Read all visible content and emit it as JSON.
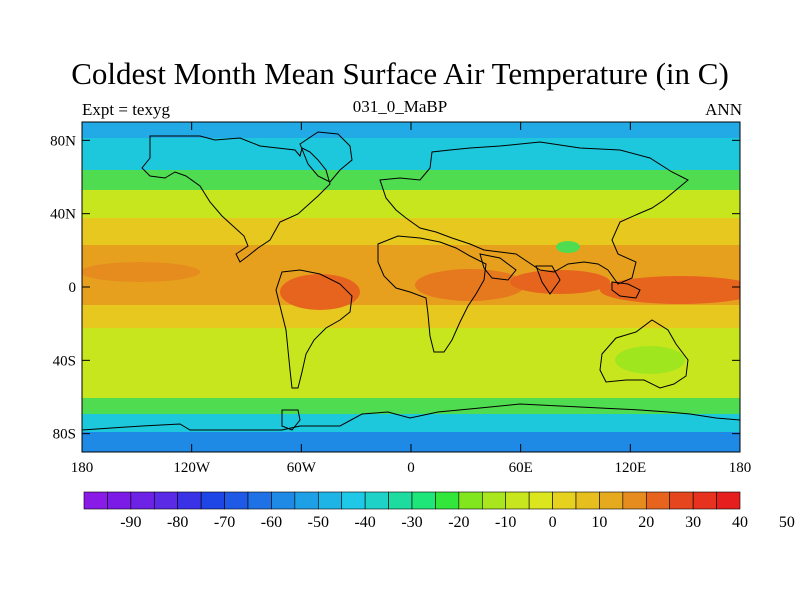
{
  "header": {
    "title": "Coldest Month Mean Surface Air Temperature (in C)",
    "left": "Expt = texyg",
    "center": "031_0_MaBP",
    "right": "ANN"
  },
  "axes": {
    "lon_ticks": [
      "180",
      "120W",
      "60W",
      "0",
      "60E",
      "120E",
      "180"
    ],
    "lat_ticks": [
      "80N",
      "40N",
      "0",
      "40S",
      "80S"
    ],
    "lon_values": [
      -180,
      -120,
      -60,
      0,
      60,
      120,
      180
    ],
    "lat_values": [
      80,
      40,
      0,
      -40,
      -80
    ]
  },
  "colorbar": {
    "labels": [
      "-90",
      "-80",
      "-70",
      "-60",
      "-50",
      "-40",
      "-30",
      "-20",
      "-10",
      "0",
      "10",
      "20",
      "30",
      "40",
      "50"
    ],
    "colors": [
      "#8a1ae6",
      "#7c1ae6",
      "#6d22e6",
      "#5a2ae6",
      "#3a32e6",
      "#1e46e6",
      "#1e5ae6",
      "#1e72e6",
      "#1e8ae6",
      "#1ea0e6",
      "#1eb4e6",
      "#1ec8e6",
      "#1ed2c8",
      "#1edca0",
      "#1ee678",
      "#32e63c",
      "#82e61e",
      "#aae61e",
      "#c8e61e",
      "#dce61e",
      "#e6d21e",
      "#e6be1e",
      "#e6aa1e",
      "#e68c1e",
      "#e6641e",
      "#e6461e",
      "#e6321e",
      "#e61e1e"
    ]
  },
  "colors": {
    "polar": "#22aae6",
    "cold": "#1ec8dc",
    "cool": "#50dc50",
    "mild": "#c8e61e",
    "warm": "#e6c81e",
    "hot": "#e6961e",
    "hottest": "#e6641e"
  }
}
